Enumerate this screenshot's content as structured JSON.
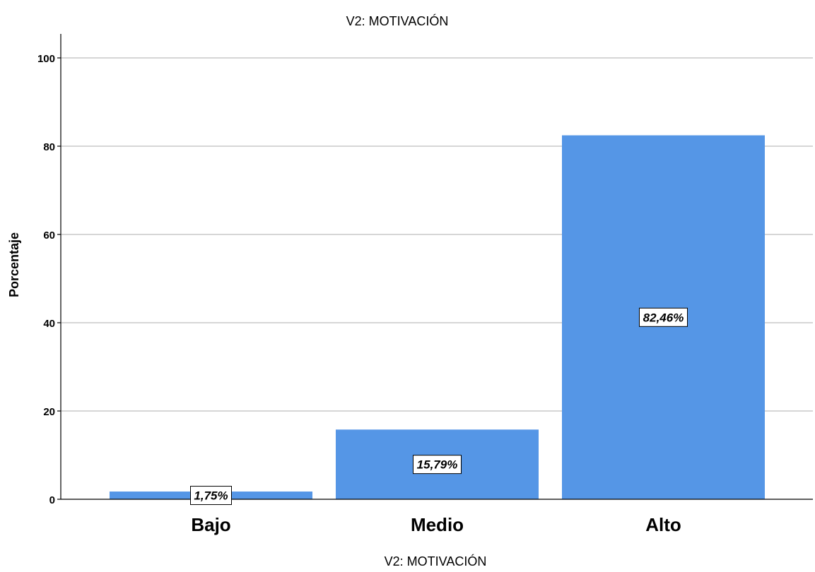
{
  "chart_data": {
    "type": "bar",
    "title": "V2: MOTIVACIÓN",
    "xlabel": "V2: MOTIVACIÓN",
    "ylabel": "Porcentaje",
    "categories": [
      "Bajo",
      "Medio",
      "Alto"
    ],
    "values": [
      1.75,
      15.79,
      82.46
    ],
    "data_labels": [
      "1,75%",
      "15,79%",
      "82,46%"
    ],
    "ylim": [
      0,
      105
    ],
    "yticks": [
      "0",
      "20",
      "40",
      "60",
      "80",
      "100"
    ],
    "ytick_values": [
      0,
      20,
      40,
      60,
      80,
      100
    ],
    "grid": true,
    "bar_color": "#5596e6",
    "grid_color": "#c8c8c8"
  }
}
